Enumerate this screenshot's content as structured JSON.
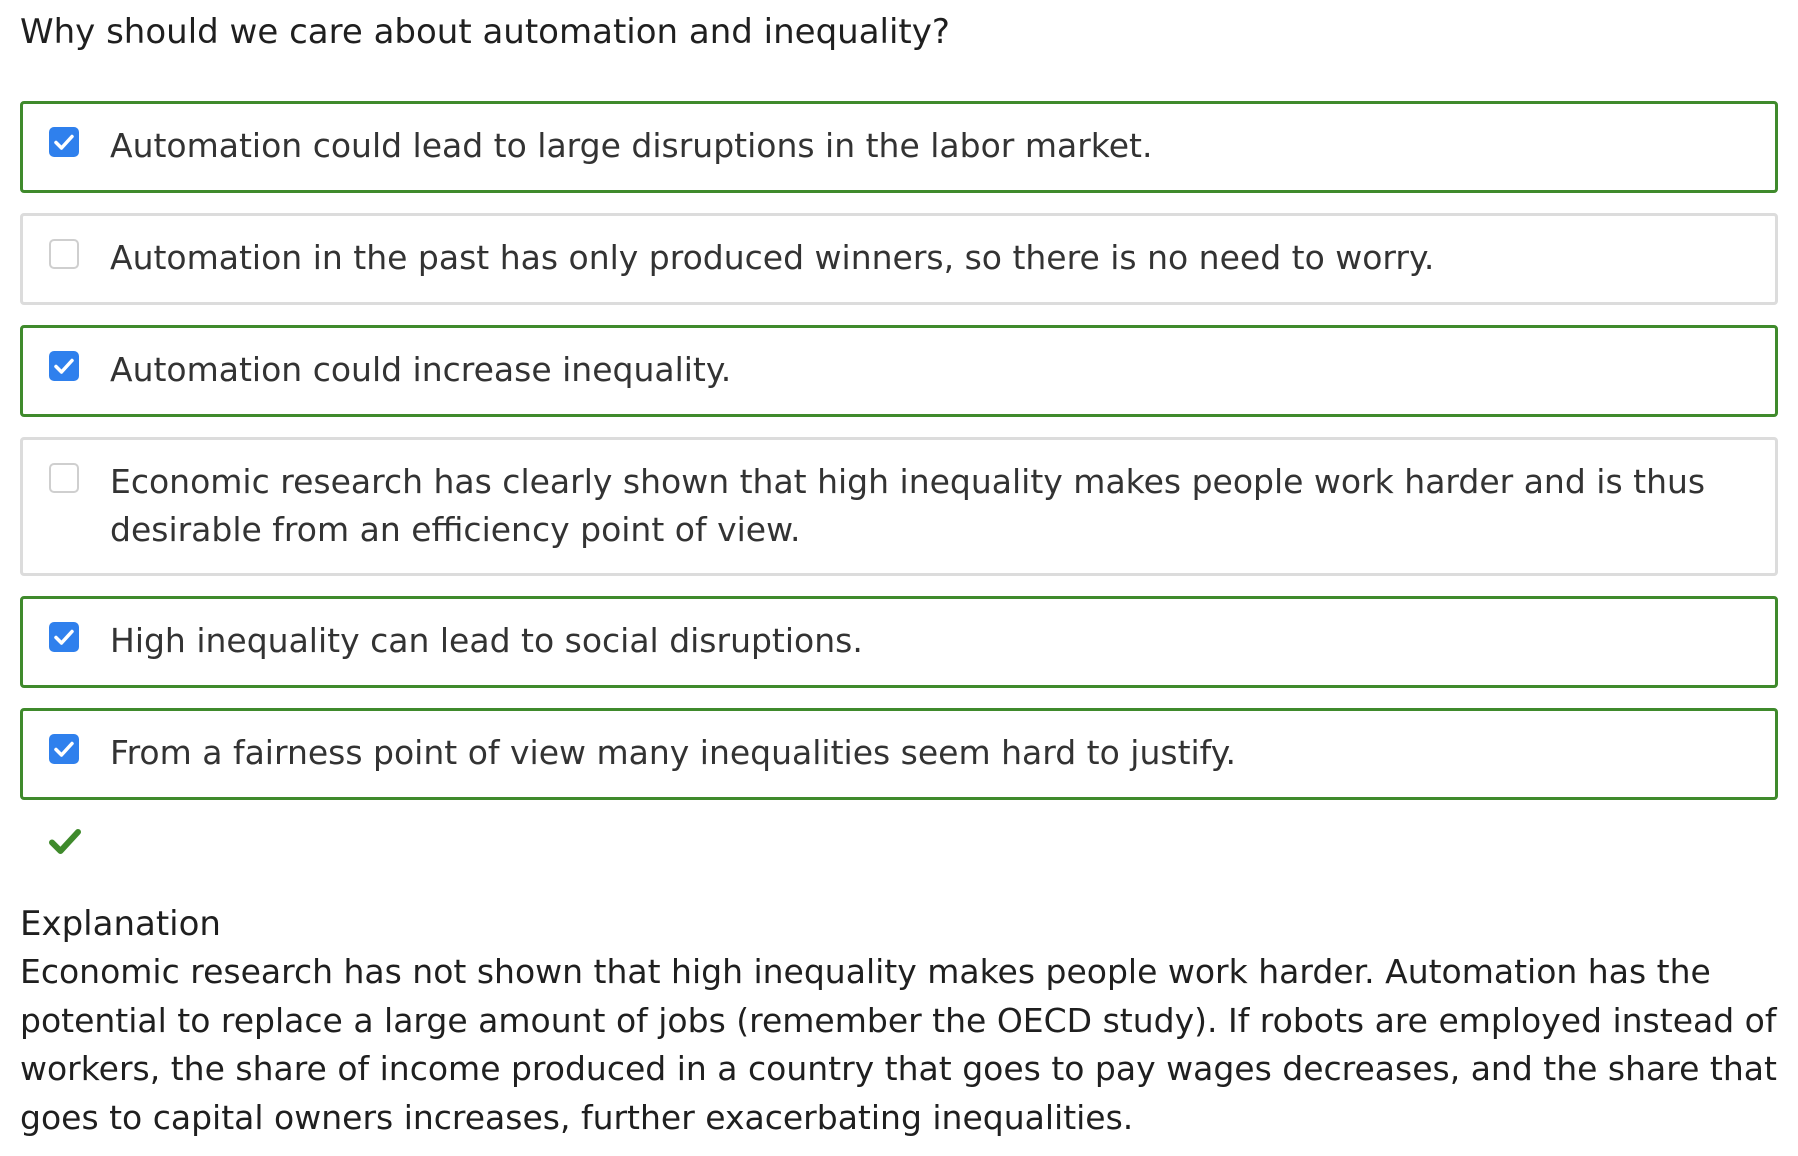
{
  "question": {
    "text": "Why should we care about automation and inequality?"
  },
  "options": [
    {
      "label": "Automation could lead to large disruptions in the labor market.",
      "checked": true,
      "correct": true
    },
    {
      "label": "Automation in the past has only produced winners, so there is no need to worry.",
      "checked": false,
      "correct": false
    },
    {
      "label": "Automation could increase inequality.",
      "checked": true,
      "correct": true
    },
    {
      "label": "Economic research has clearly shown that high inequality makes people work harder and is thus desirable from an efficiency point of view.",
      "checked": false,
      "correct": false
    },
    {
      "label": "High inequality can lead to social disruptions.",
      "checked": true,
      "correct": true
    },
    {
      "label": "From a fairness point of view many inequalities seem hard to justify.",
      "checked": true,
      "correct": true
    }
  ],
  "result": {
    "icon": "checkmark-icon",
    "status": "correct",
    "color": "#3f8a2c"
  },
  "explanation": {
    "title": "Explanation",
    "text": "Economic research has not shown that high inequality makes people work harder. Automation has the potential to replace a large amount of jobs (remember the OECD study). If robots are employed instead of workers, the share of income produced in a country that goes to pay wages decreases, and the share that goes to capital owners increases, further exacerbating inequalities."
  },
  "colors": {
    "correct_border": "#3f8a2c",
    "neutral_border": "#dcdcdc",
    "checkbox_fill": "#2f80ed"
  }
}
